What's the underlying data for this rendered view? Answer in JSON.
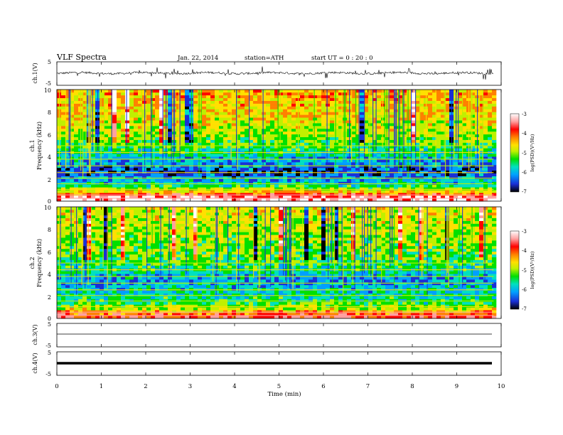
{
  "header": {
    "title": "VLF  Spectra",
    "date": "Jan. 22, 2014",
    "station": "station=ATH",
    "start": "start  UT =   0 : 20 : 0"
  },
  "x_axis": {
    "label": "Time  (min)",
    "ticks": [
      "0",
      "1",
      "2",
      "3",
      "4",
      "5",
      "6",
      "7",
      "8",
      "9",
      "10"
    ],
    "range": [
      0,
      10
    ],
    "data_end_min": 9.83
  },
  "panels": {
    "ch1_wave": {
      "ylabel": "ch.1(V)",
      "ticks": [
        "5",
        "-5"
      ],
      "ylim": [
        -5,
        5
      ]
    },
    "ch1_spec": {
      "ylabel": "ch.1\nFrequency (kHz)",
      "ticks": [
        "10",
        "8",
        "6",
        "4",
        "2",
        "0"
      ],
      "ylim": [
        0,
        10
      ]
    },
    "ch2_spec": {
      "ylabel": "ch.2\nFrequency (kHz)",
      "ticks": [
        "10",
        "8",
        "6",
        "4",
        "2",
        "0"
      ],
      "ylim": [
        0,
        10
      ]
    },
    "ch3_wave": {
      "ylabel": "ch.3(V)",
      "ticks": [
        "5",
        "-5"
      ],
      "ylim": [
        -5,
        5
      ]
    },
    "ch4_wave": {
      "ylabel": "ch.4(V)",
      "ticks": [
        "5",
        "-5"
      ],
      "ylim": [
        -5,
        5
      ]
    }
  },
  "colorbar": {
    "label": "log(PSD)(V²/Hz)",
    "ticks": [
      "-3",
      "-4",
      "-5",
      "-6",
      "-7"
    ],
    "range": [
      -7,
      -3
    ],
    "colors": [
      "#000000",
      "#1a2fd6",
      "#00a0ff",
      "#00e0c0",
      "#00e000",
      "#c0f000",
      "#ffe000",
      "#ff8000",
      "#ff0000",
      "#ffa0a0",
      "#ffffff"
    ]
  },
  "chart_data": [
    {
      "type": "line",
      "name_hint": "ch.1 waveform",
      "ylabel": "ch.1(V)",
      "ylim": [
        -5,
        5
      ],
      "xlim": [
        0,
        10
      ],
      "x": [
        0,
        1,
        2,
        3,
        4,
        5,
        6,
        7,
        8,
        9,
        9.83
      ],
      "values": [
        0.2,
        0.3,
        0.0,
        0.4,
        0.1,
        0.3,
        0.2,
        0.0,
        0.1,
        0.2,
        0.2
      ]
    },
    {
      "type": "heatmap",
      "ylabel": "ch.1 Frequency (kHz)",
      "ylim": [
        0,
        10
      ],
      "xlim": [
        0,
        10
      ],
      "freq_bands_khz": [
        0.3,
        0.8,
        1.5,
        2.5,
        3.5,
        4.5,
        6,
        8,
        9.5
      ],
      "log_psd": [
        -3.2,
        -4.5,
        -5.8,
        -6.6,
        -6.2,
        -5.6,
        -5.0,
        -4.6,
        -4.4
      ]
    },
    {
      "type": "heatmap",
      "ylabel": "ch.2 Frequency (kHz)",
      "ylim": [
        0,
        10
      ],
      "xlim": [
        0,
        10
      ],
      "freq_bands_khz": [
        0.3,
        0.8,
        1.5,
        2.5,
        3.5,
        4.5,
        6,
        8,
        9.5
      ],
      "log_psd": [
        -3.8,
        -4.8,
        -5.6,
        -5.9,
        -6.2,
        -5.6,
        -5.2,
        -5.0,
        -4.8
      ]
    },
    {
      "type": "line",
      "ylabel": "ch.3(V)",
      "ylim": [
        -5,
        5
      ],
      "xlim": [
        0,
        10
      ],
      "x": [
        0,
        9.83
      ],
      "values": [
        0.3,
        0.3
      ]
    },
    {
      "type": "line",
      "ylabel": "ch.4(V)",
      "ylim": [
        -5,
        5
      ],
      "xlim": [
        0,
        10
      ],
      "x": [
        0,
        9.83
      ],
      "values": [
        0.0,
        0.0
      ]
    }
  ]
}
